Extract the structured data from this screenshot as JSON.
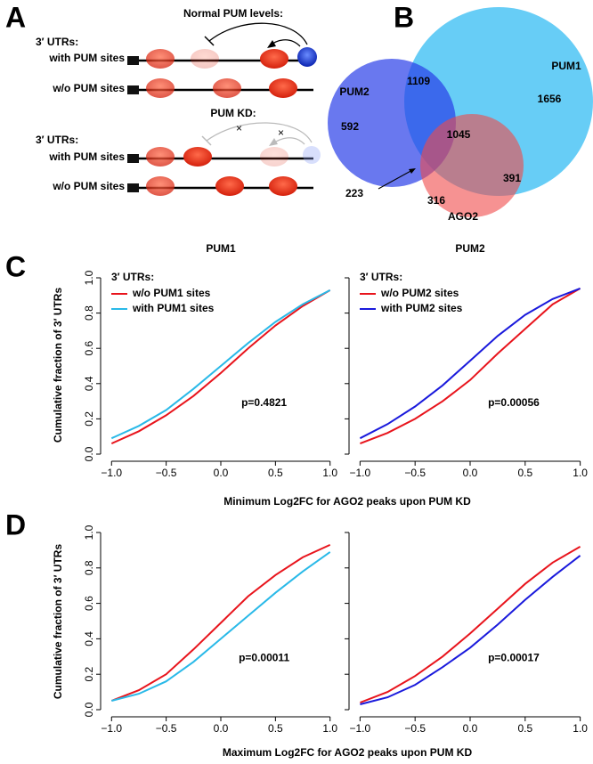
{
  "panel_a": {
    "label": "A",
    "normal_title": "Normal PUM levels:",
    "normal_utr": "3′ UTRs:",
    "normal_with": "with PUM sites",
    "normal_without": "w/o PUM sites",
    "kd_title": "PUM KD:",
    "kd_utr": "3′ UTRs:",
    "kd_with": "with PUM sites",
    "kd_without": "w/o PUM sites"
  },
  "panel_b": {
    "label": "B",
    "sets": [
      "PUM1",
      "PUM2",
      "AGO2"
    ],
    "counts": [
      592,
      1109,
      1656,
      1045,
      391,
      223,
      316
    ]
  },
  "panel_c": {
    "label": "C",
    "y_label": "Cumulative fraction of 3′ UTRs",
    "x_label": "Minimum Log2FC for AGO2 peaks upon PUM KD"
  },
  "panel_d": {
    "label": "D",
    "y_label": "Cumulative fraction of 3′ UTRs",
    "x_label": "Maximum Log2FC for AGO2 peaks upon PUM KD"
  },
  "chart_data": [
    {
      "type": "line",
      "title": "PUM1",
      "legend_title": "3′ UTRs:",
      "annotation": "p=0.4821",
      "x": [
        -1,
        -0.75,
        -0.5,
        -0.25,
        0,
        0.25,
        0.5,
        0.75,
        1
      ],
      "series": [
        {
          "name": "w/o PUM1 sites",
          "color": "#e8141c",
          "values": [
            0.06,
            0.13,
            0.22,
            0.33,
            0.46,
            0.6,
            0.73,
            0.84,
            0.93
          ]
        },
        {
          "name": "with PUM1 sites",
          "color": "#29b9e8",
          "values": [
            0.09,
            0.16,
            0.25,
            0.37,
            0.5,
            0.63,
            0.75,
            0.85,
            0.93
          ]
        }
      ],
      "xlim": [
        -1.1,
        1.1
      ],
      "ylim": [
        0,
        1
      ],
      "xticks": [
        {
          "value": -1,
          "label": "−1.0"
        },
        {
          "value": -0.5,
          "label": "−0.5"
        },
        {
          "value": 0,
          "label": "0.0"
        },
        0.5,
        {
          "value": 1,
          "label": "1.0"
        }
      ],
      "yticks": [
        {
          "value": 0,
          "label": "0.0"
        },
        0.2,
        0.4,
        0.6,
        0.8,
        {
          "value": 1,
          "label": "1.0"
        }
      ],
      "grid": false
    },
    {
      "type": "line",
      "title": "PUM2",
      "legend_title": "3′ UTRs:",
      "annotation": "p=0.00056",
      "x": [
        -1,
        -0.75,
        -0.5,
        -0.25,
        0,
        0.25,
        0.5,
        0.75,
        1
      ],
      "series": [
        {
          "name": "w/o PUM2 sites",
          "color": "#e8141c",
          "values": [
            0.06,
            0.12,
            0.2,
            0.3,
            0.42,
            0.57,
            0.71,
            0.85,
            0.94
          ]
        },
        {
          "name": "with PUM2 sites",
          "color": "#1a1adc",
          "values": [
            0.09,
            0.17,
            0.27,
            0.39,
            0.53,
            0.67,
            0.79,
            0.88,
            0.94
          ]
        }
      ],
      "xlim": [
        -1.1,
        1.1
      ],
      "ylim": [
        0,
        1
      ],
      "xticks": [
        {
          "value": -1,
          "label": "−1.0"
        },
        {
          "value": -0.5,
          "label": "−0.5"
        },
        {
          "value": 0,
          "label": "0.0"
        },
        0.5,
        {
          "value": 1,
          "label": "1.0"
        }
      ],
      "grid": false
    },
    {
      "type": "line",
      "annotation": "p=0.00011",
      "x": [
        -1,
        -0.75,
        -0.5,
        -0.25,
        0,
        0.25,
        0.5,
        0.75,
        1
      ],
      "series": [
        {
          "color": "#e8141c",
          "values": [
            0.05,
            0.11,
            0.2,
            0.34,
            0.49,
            0.64,
            0.76,
            0.86,
            0.93
          ]
        },
        {
          "color": "#29b9e8",
          "values": [
            0.05,
            0.09,
            0.16,
            0.27,
            0.4,
            0.53,
            0.66,
            0.78,
            0.89
          ]
        }
      ],
      "xlim": [
        -1.1,
        1.1
      ],
      "ylim": [
        0,
        1
      ],
      "xticks": [
        {
          "value": -1,
          "label": "−1.0"
        },
        {
          "value": -0.5,
          "label": "−0.5"
        },
        {
          "value": 0,
          "label": "0.0"
        },
        0.5,
        {
          "value": 1,
          "label": "1.0"
        }
      ],
      "yticks": [
        {
          "value": 0,
          "label": "0.0"
        },
        0.2,
        0.4,
        0.6,
        0.8,
        {
          "value": 1,
          "label": "1.0"
        }
      ],
      "grid": false
    },
    {
      "type": "line",
      "annotation": "p=0.00017",
      "x": [
        -1,
        -0.75,
        -0.5,
        -0.25,
        0,
        0.25,
        0.5,
        0.75,
        1
      ],
      "series": [
        {
          "color": "#e8141c",
          "values": [
            0.04,
            0.1,
            0.19,
            0.3,
            0.43,
            0.57,
            0.71,
            0.83,
            0.92
          ]
        },
        {
          "color": "#1a1adc",
          "values": [
            0.03,
            0.07,
            0.14,
            0.24,
            0.35,
            0.48,
            0.62,
            0.75,
            0.87
          ]
        }
      ],
      "xlim": [
        -1.1,
        1.1
      ],
      "ylim": [
        0,
        1
      ],
      "xticks": [
        {
          "value": -1,
          "label": "−1.0"
        },
        {
          "value": -0.5,
          "label": "−0.5"
        },
        {
          "value": 0,
          "label": "0.0"
        },
        0.5,
        {
          "value": 1,
          "label": "1.0"
        }
      ],
      "grid": false
    }
  ]
}
